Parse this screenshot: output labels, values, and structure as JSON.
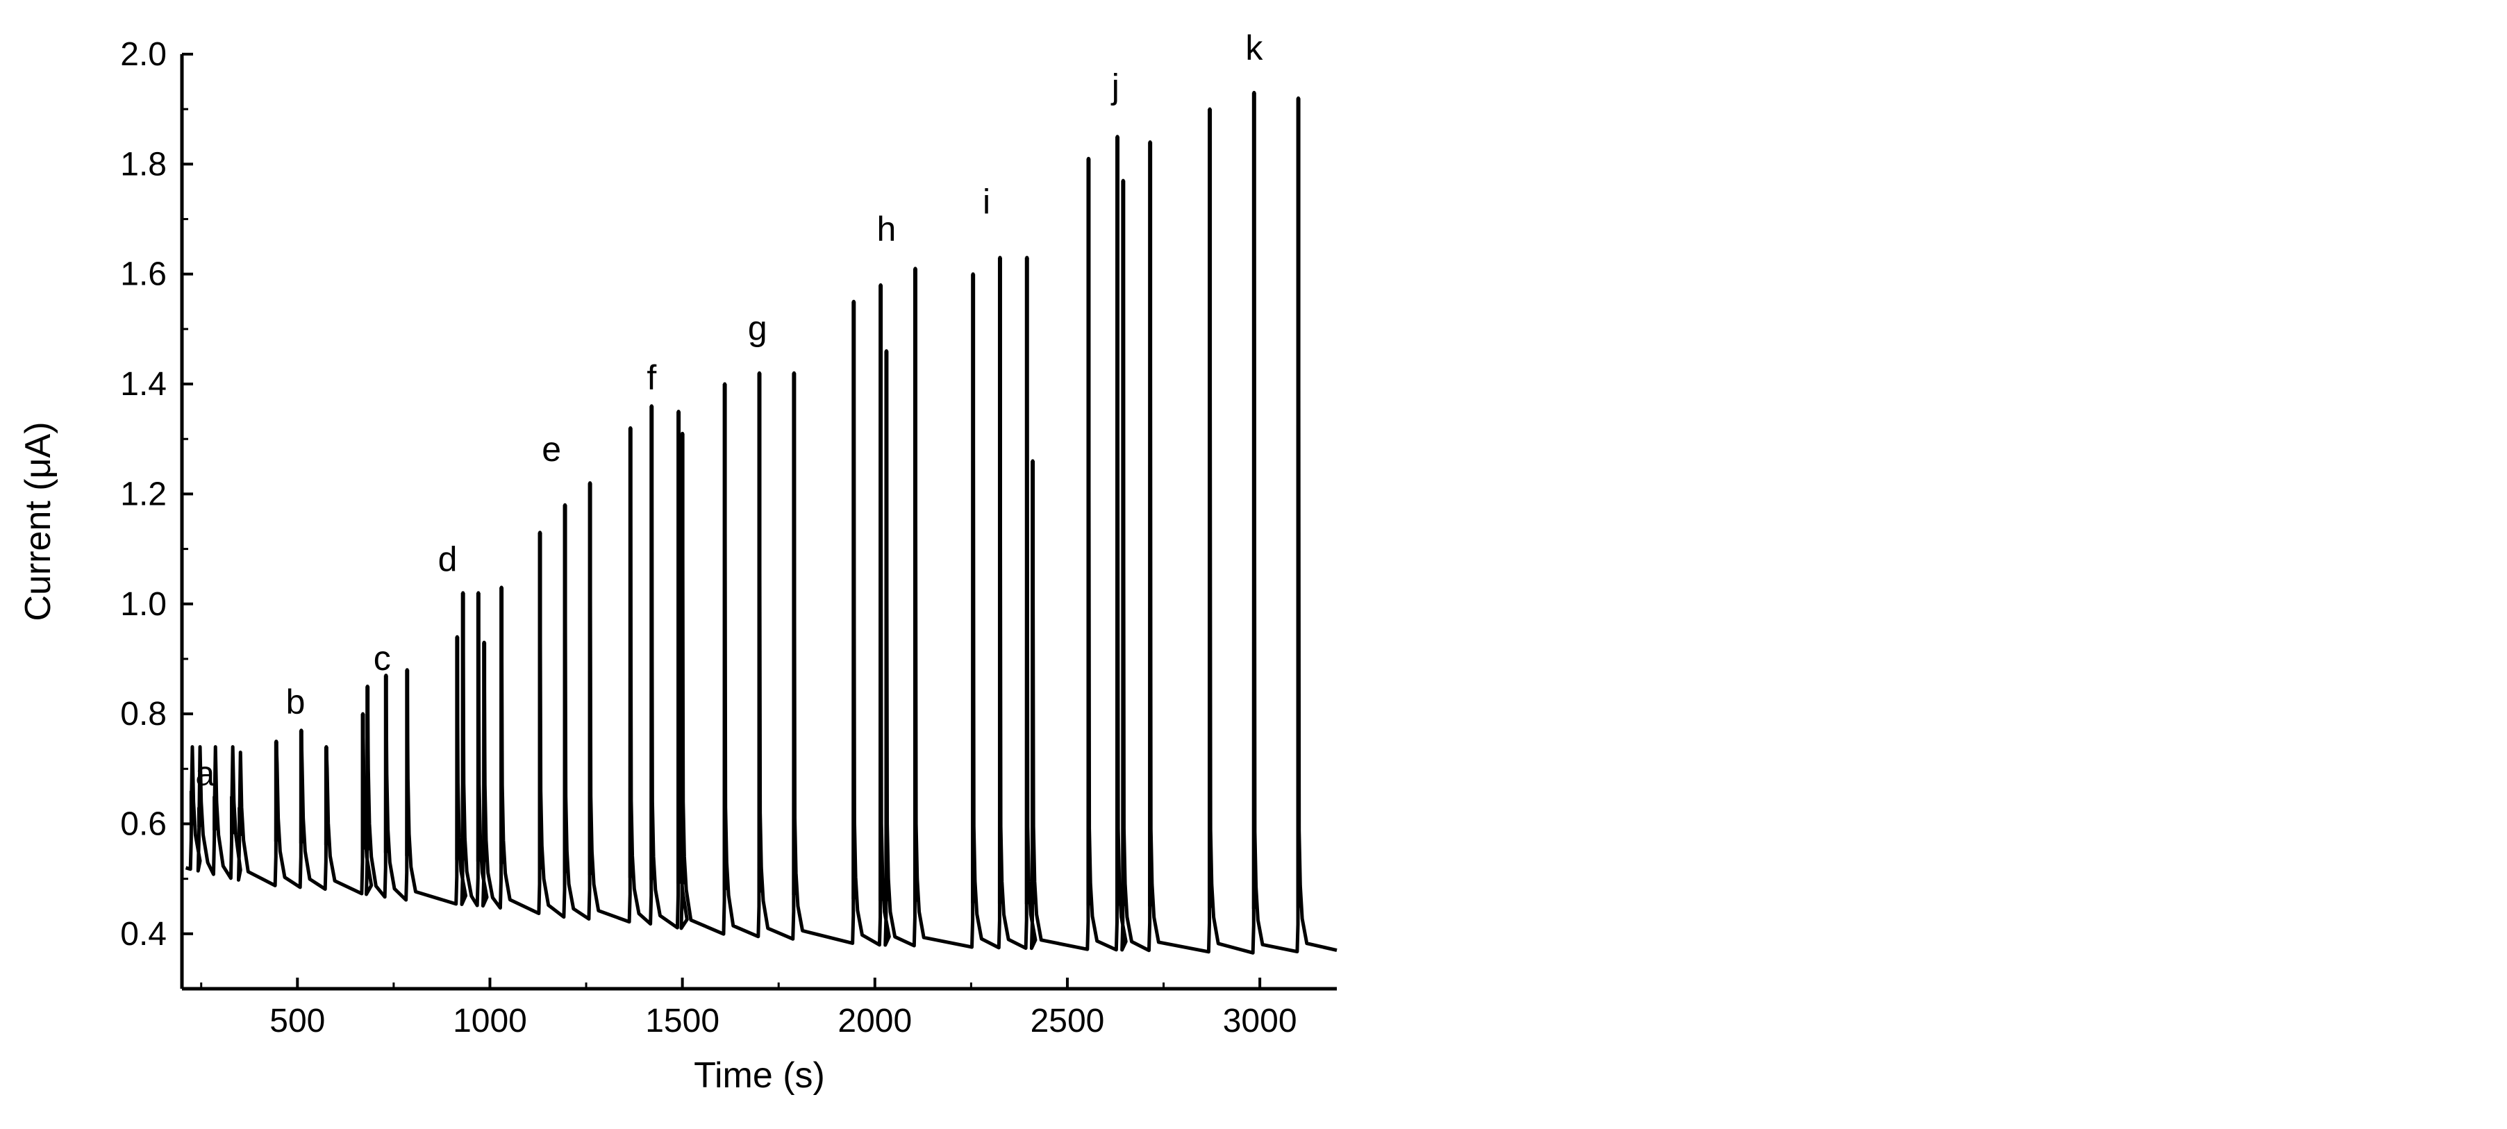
{
  "chart_data": {
    "type": "line",
    "title": "",
    "xlabel": "Time (s)",
    "ylabel": "Current (μA)",
    "xlim": [
      200,
      3200
    ],
    "ylim": [
      0.3,
      2.0
    ],
    "xticks": [
      500,
      1000,
      1500,
      2000,
      2500,
      3000
    ],
    "xtick_labels": [
      "500",
      "1000",
      "1500",
      "2000",
      "2500",
      "3000"
    ],
    "yticks": [
      0.4,
      0.6,
      0.8,
      1.0,
      1.2,
      1.4,
      1.6,
      1.8,
      2.0
    ],
    "ytick_labels": [
      "0.4",
      "0.6",
      "0.8",
      "1.0",
      "1.2",
      "1.4",
      "1.6",
      "1.8",
      "2.0"
    ],
    "grid": false,
    "line_color": "#000000",
    "baseline": [
      {
        "x": 210,
        "y": 0.52
      },
      {
        "x": 400,
        "y": 0.49
      },
      {
        "x": 600,
        "y": 0.48
      },
      {
        "x": 800,
        "y": 0.46
      },
      {
        "x": 1000,
        "y": 0.45
      },
      {
        "x": 1200,
        "y": 0.43
      },
      {
        "x": 1400,
        "y": 0.42
      },
      {
        "x": 1600,
        "y": 0.4
      },
      {
        "x": 1800,
        "y": 0.39
      },
      {
        "x": 2000,
        "y": 0.38
      },
      {
        "x": 2300,
        "y": 0.375
      },
      {
        "x": 2700,
        "y": 0.37
      },
      {
        "x": 3000,
        "y": 0.365
      },
      {
        "x": 3200,
        "y": 0.37
      }
    ],
    "groups": [
      {
        "label": "a",
        "label_x": 260,
        "label_y": 0.67,
        "peaks": [
          {
            "x": 225,
            "y": 0.66,
            "base": 0.52
          },
          {
            "x": 245,
            "y": 0.63,
            "base": 0.52
          },
          {
            "x": 285,
            "y": 0.65,
            "base": 0.52
          },
          {
            "x": 330,
            "y": 0.65,
            "base": 0.52
          },
          {
            "x": 350,
            "y": 0.63,
            "base": 0.51
          }
        ]
      },
      {
        "label": "b",
        "label_x": 495,
        "label_y": 0.8,
        "peaks": [
          {
            "x": 445,
            "y": 0.75,
            "base": 0.49
          },
          {
            "x": 510,
            "y": 0.77,
            "base": 0.49
          },
          {
            "x": 575,
            "y": 0.74,
            "base": 0.48
          }
        ]
      },
      {
        "label": "c",
        "label_x": 720,
        "label_y": 0.88,
        "peaks": [
          {
            "x": 670,
            "y": 0.8,
            "base": 0.48
          },
          {
            "x": 682,
            "y": 0.85,
            "base": 0.48
          },
          {
            "x": 730,
            "y": 0.87,
            "base": 0.47
          },
          {
            "x": 785,
            "y": 0.88,
            "base": 0.46
          }
        ]
      },
      {
        "label": "d",
        "label_x": 890,
        "label_y": 1.06,
        "peaks": [
          {
            "x": 915,
            "y": 0.94,
            "base": 0.45
          },
          {
            "x": 930,
            "y": 1.02,
            "base": 0.45
          },
          {
            "x": 970,
            "y": 1.02,
            "base": 0.45
          },
          {
            "x": 985,
            "y": 0.93,
            "base": 0.45
          },
          {
            "x": 1030,
            "y": 1.03,
            "base": 0.45
          }
        ]
      },
      {
        "label": "e",
        "label_x": 1160,
        "label_y": 1.26,
        "peaks": [
          {
            "x": 1130,
            "y": 1.13,
            "base": 0.44
          },
          {
            "x": 1195,
            "y": 1.18,
            "base": 0.43
          },
          {
            "x": 1260,
            "y": 1.22,
            "base": 0.43
          }
        ]
      },
      {
        "label": "f",
        "label_x": 1420,
        "label_y": 1.39,
        "peaks": [
          {
            "x": 1365,
            "y": 1.32,
            "base": 0.42
          },
          {
            "x": 1420,
            "y": 1.36,
            "base": 0.42
          },
          {
            "x": 1490,
            "y": 1.35,
            "base": 0.42
          },
          {
            "x": 1500,
            "y": 1.31,
            "base": 0.42
          }
        ]
      },
      {
        "label": "g",
        "label_x": 1695,
        "label_y": 1.48,
        "peaks": [
          {
            "x": 1610,
            "y": 1.4,
            "base": 0.41
          },
          {
            "x": 1700,
            "y": 1.42,
            "base": 0.4
          },
          {
            "x": 1790,
            "y": 1.42,
            "base": 0.39
          }
        ]
      },
      {
        "label": "h",
        "label_x": 2030,
        "label_y": 1.66,
        "peaks": [
          {
            "x": 1945,
            "y": 1.55,
            "base": 0.38
          },
          {
            "x": 2015,
            "y": 1.58,
            "base": 0.38
          },
          {
            "x": 2030,
            "y": 1.46,
            "base": 0.38
          },
          {
            "x": 2105,
            "y": 1.61,
            "base": 0.38
          }
        ]
      },
      {
        "label": "i",
        "label_x": 2290,
        "label_y": 1.71,
        "peaks": [
          {
            "x": 2255,
            "y": 1.6,
            "base": 0.375
          },
          {
            "x": 2325,
            "y": 1.63,
            "base": 0.375
          },
          {
            "x": 2395,
            "y": 1.63,
            "base": 0.375
          },
          {
            "x": 2410,
            "y": 1.26,
            "base": 0.375
          }
        ]
      },
      {
        "label": "j",
        "label_x": 2625,
        "label_y": 1.92,
        "peaks": [
          {
            "x": 2555,
            "y": 1.81,
            "base": 0.37
          },
          {
            "x": 2630,
            "y": 1.85,
            "base": 0.37
          },
          {
            "x": 2645,
            "y": 1.77,
            "base": 0.37
          },
          {
            "x": 2715,
            "y": 1.84,
            "base": 0.37
          }
        ]
      },
      {
        "label": "k",
        "label_x": 2985,
        "label_y": 1.99,
        "peaks": [
          {
            "x": 2870,
            "y": 1.9,
            "base": 0.37
          },
          {
            "x": 2985,
            "y": 1.93,
            "base": 0.365
          },
          {
            "x": 3100,
            "y": 1.92,
            "base": 0.365
          }
        ]
      }
    ]
  }
}
